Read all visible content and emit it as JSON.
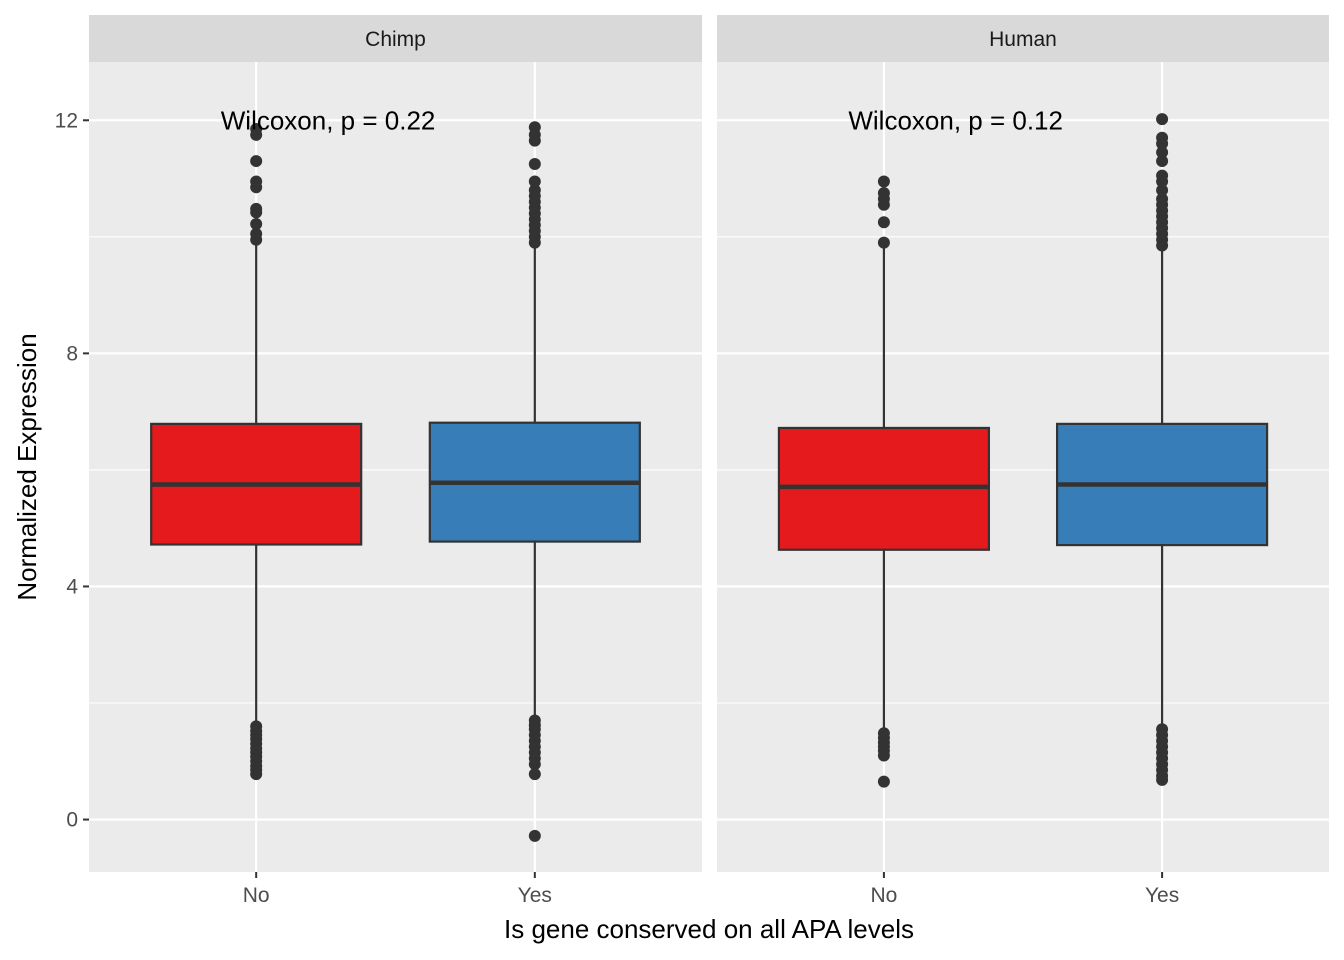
{
  "chart_data": {
    "type": "box",
    "xlabel": "Is gene conserved on all APA levels",
    "ylabel": "Normalized Expression",
    "ylim": [
      -0.9,
      13.0
    ],
    "yticks": [
      0,
      4,
      8,
      12
    ],
    "categories": [
      "No",
      "Yes"
    ],
    "colors": {
      "No": "#e41a1c",
      "Yes": "#377eb8"
    },
    "grid": true,
    "legend": "none",
    "panels": [
      {
        "name": "Chimp",
        "annotation": "Wilcoxon, p = 0.22",
        "boxes": [
          {
            "category": "No",
            "lower_whisker": 1.65,
            "q1": 4.72,
            "median": 5.75,
            "q3": 6.79,
            "upper_whisker": 9.9,
            "outliers": [
              0.78,
              0.85,
              0.92,
              1.0,
              1.08,
              1.15,
              1.22,
              1.3,
              1.38,
              1.45,
              1.52,
              1.6,
              9.95,
              10.05,
              10.22,
              10.42,
              10.48,
              10.85,
              10.95,
              11.3,
              11.75,
              11.85
            ]
          },
          {
            "category": "Yes",
            "lower_whisker": 1.75,
            "q1": 4.77,
            "median": 5.78,
            "q3": 6.81,
            "upper_whisker": 9.85,
            "outliers": [
              -0.28,
              0.78,
              0.95,
              1.05,
              1.15,
              1.25,
              1.35,
              1.45,
              1.55,
              1.62,
              1.7,
              9.9,
              10.0,
              10.1,
              10.2,
              10.3,
              10.4,
              10.5,
              10.6,
              10.7,
              10.8,
              10.95,
              11.25,
              11.65,
              11.75,
              11.88
            ]
          }
        ]
      },
      {
        "name": "Human",
        "annotation": "Wilcoxon, p = 0.12",
        "boxes": [
          {
            "category": "No",
            "lower_whisker": 1.55,
            "q1": 4.63,
            "median": 5.71,
            "q3": 6.72,
            "upper_whisker": 9.8,
            "outliers": [
              0.65,
              1.1,
              1.18,
              1.25,
              1.32,
              1.4,
              1.48,
              9.9,
              10.25,
              10.55,
              10.65,
              10.75,
              10.95
            ]
          },
          {
            "category": "Yes",
            "lower_whisker": 1.6,
            "q1": 4.71,
            "median": 5.75,
            "q3": 6.79,
            "upper_whisker": 9.8,
            "outliers": [
              0.68,
              0.75,
              0.85,
              0.95,
              1.05,
              1.15,
              1.25,
              1.35,
              1.45,
              1.55,
              9.85,
              9.95,
              10.05,
              10.15,
              10.25,
              10.35,
              10.45,
              10.55,
              10.65,
              10.8,
              10.95,
              11.05,
              11.3,
              11.45,
              11.6,
              11.7,
              12.02
            ]
          }
        ]
      }
    ]
  }
}
